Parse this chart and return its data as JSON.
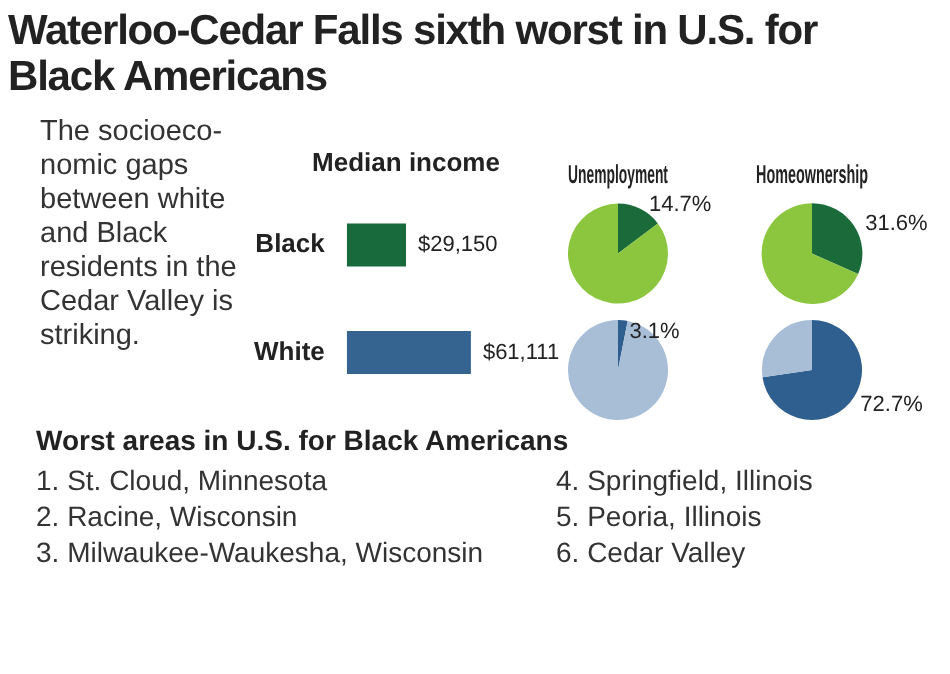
{
  "chart_data": [
    {
      "type": "other",
      "title": "Waterloo-Cedar Falls sixth worst in U.S. for Black Americans",
      "annotations": [
        "The socioeco-nomic gaps between white and Black residents in the Cedar Valley is striking."
      ]
    },
    {
      "type": "bar",
      "orientation": "horizontal",
      "title": "Median income",
      "categories": [
        "Black",
        "White"
      ],
      "values": [
        29150,
        61111
      ],
      "colors": [
        "#18693b",
        "#34648f"
      ],
      "value_labels": [
        "$29,150",
        "$61,111"
      ]
    },
    {
      "type": "pie",
      "title": "Unemployment",
      "categories": [
        null,
        null
      ],
      "values": [
        14.7,
        85.3
      ],
      "colors": [
        "#1b6b3a",
        "#8cc63f"
      ],
      "value_labels": [
        "14.7%",
        null
      ]
    },
    {
      "type": "pie",
      "categories": [
        null,
        null
      ],
      "values": [
        3.1,
        96.9
      ],
      "colors": [
        "#2f5f8e",
        "#a8bdd6"
      ],
      "value_labels": [
        "3.1%",
        null
      ]
    },
    {
      "type": "pie",
      "title": "Homeownership",
      "categories": [
        null,
        null
      ],
      "values": [
        31.6,
        68.4
      ],
      "colors": [
        "#1b6b3a",
        "#8cc63f"
      ],
      "value_labels": [
        "31.6%",
        null
      ]
    },
    {
      "type": "pie",
      "categories": [
        null,
        null
      ],
      "values": [
        72.7,
        27.3
      ],
      "colors": [
        "#2f5f8e",
        "#a8bdd6"
      ],
      "value_labels": [
        "72.7%",
        null
      ]
    },
    {
      "type": "other",
      "title": "Worst areas in U.S. for Black Americans",
      "annotations": [
        "1. St. Cloud, Minnesota",
        "2. Racine, Wisconsin",
        "3. Milwaukee-Waukesha, Wisconsin",
        "4. Springfield, Illinois",
        "5. Peoria, Illinois",
        "6. Cedar Valley"
      ]
    }
  ]
}
